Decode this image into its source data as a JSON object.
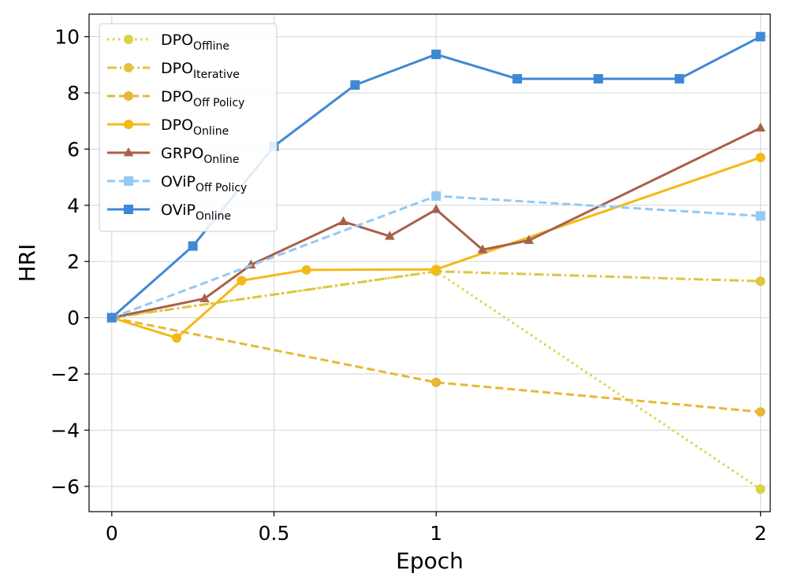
{
  "chart_data": {
    "type": "line",
    "title": "",
    "xlabel": "Epoch",
    "ylabel": "HRI",
    "xlim": [
      -0.07,
      2.03
    ],
    "ylim": [
      -6.9,
      10.8
    ],
    "x_ticks": [
      0,
      0.5,
      1,
      2
    ],
    "x_tick_labels": [
      "0",
      "0.5",
      "1",
      "2"
    ],
    "y_ticks": [
      -6,
      -4,
      -2,
      0,
      2,
      4,
      6,
      8,
      10
    ],
    "y_tick_labels": [
      "−6",
      "−4",
      "−2",
      "0",
      "2",
      "4",
      "6",
      "8",
      "10"
    ],
    "grid": true,
    "legend_position": "top-left",
    "series": [
      {
        "name": "DPO",
        "sub": "Offline",
        "color": "#d9d441",
        "dash": "dotted",
        "marker": "circle",
        "x": [
          0,
          1,
          2
        ],
        "y": [
          0,
          1.65,
          -6.1
        ]
      },
      {
        "name": "DPO",
        "sub": "Iterative",
        "color": "#e0c43e",
        "dash": "dashdot",
        "marker": "circle",
        "x": [
          0,
          1,
          2
        ],
        "y": [
          0,
          1.65,
          1.3
        ]
      },
      {
        "name": "DPO",
        "sub": "Off Policy",
        "color": "#e8b735",
        "dash": "dashed",
        "marker": "circle",
        "x": [
          0,
          1,
          2
        ],
        "y": [
          0,
          -2.3,
          -3.35
        ]
      },
      {
        "name": "DPO",
        "sub": "Online",
        "color": "#f5b915",
        "dash": "solid",
        "marker": "circle",
        "x": [
          0,
          0.2,
          0.4,
          0.6,
          1,
          2
        ],
        "y": [
          0,
          -0.72,
          1.32,
          1.7,
          1.72,
          5.7
        ]
      },
      {
        "name": "GRPO",
        "sub": "Online",
        "color": "#a8604a",
        "dash": "solid",
        "marker": "triangle",
        "x": [
          0,
          0.286,
          0.429,
          0.714,
          0.857,
          1,
          1.143,
          1.286,
          2
        ],
        "y": [
          0,
          0.68,
          1.88,
          3.42,
          2.9,
          3.85,
          2.42,
          2.75,
          6.75
        ]
      },
      {
        "name": "OViP",
        "sub": "Off Policy",
        "color": "#93c9f4",
        "dash": "dashed",
        "marker": "square",
        "x": [
          0,
          1,
          2
        ],
        "y": [
          0,
          4.33,
          3.62
        ]
      },
      {
        "name": "OViP",
        "sub": "Online",
        "color": "#3f88d6",
        "dash": "solid",
        "marker": "square",
        "x": [
          0,
          0.25,
          0.5,
          0.75,
          1,
          1.25,
          1.5,
          1.75,
          2
        ],
        "y": [
          0,
          2.55,
          6.1,
          8.28,
          9.37,
          8.5,
          8.5,
          8.5,
          10
        ]
      }
    ]
  }
}
